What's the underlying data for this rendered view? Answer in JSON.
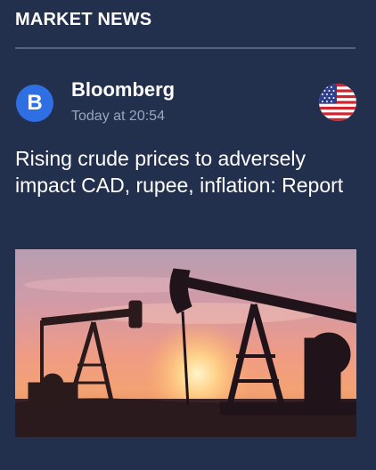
{
  "header": {
    "title": "MARKET NEWS"
  },
  "article": {
    "source": {
      "initial": "B",
      "name": "Bloomberg",
      "time": "Today at 20:54"
    },
    "country_flag": "us-flag-icon",
    "headline": "Rising crude prices to adversely impact CAD, rupee, inflation: Report",
    "image": "oil-pumpjacks-sunset-photo"
  },
  "colors": {
    "background": "#23304d",
    "divider": "#56637e",
    "avatar": "#2f6fe4",
    "secondary_text": "#9aa5bd"
  }
}
